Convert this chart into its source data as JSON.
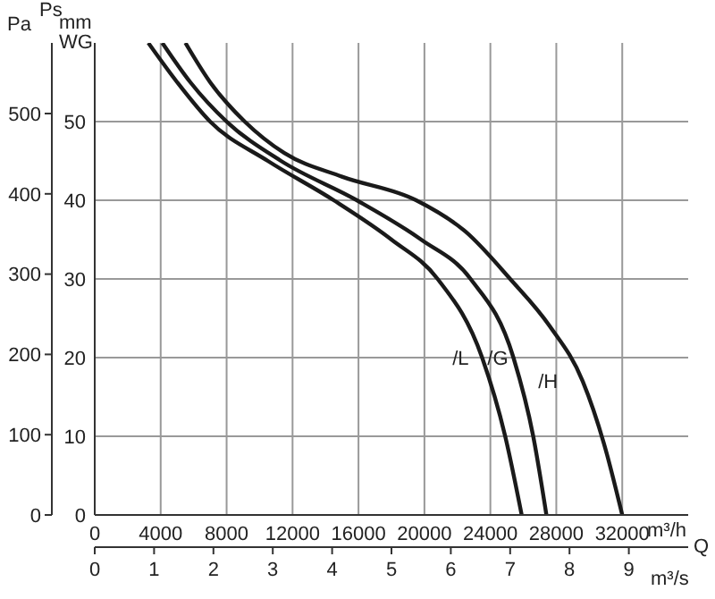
{
  "chart_data": {
    "type": "line",
    "ylabel": "mm WG",
    "y2label": "Pa",
    "xlabel": "m³/h",
    "x2label": "m³/s",
    "annotations": [
      "Ps",
      "Q"
    ],
    "xlim": [
      0,
      36000
    ],
    "xticks": [
      0,
      4000,
      8000,
      12000,
      16000,
      20000,
      24000,
      28000,
      32000
    ],
    "x2lim": [
      0,
      10
    ],
    "x2ticks": [
      0,
      1,
      2,
      3,
      4,
      5,
      6,
      7,
      8,
      9
    ],
    "ylim": [
      0,
      60
    ],
    "yticks": [
      0,
      10,
      20,
      30,
      40,
      50
    ],
    "y2lim": [
      0,
      588
    ],
    "y2ticks": [
      0,
      100,
      200,
      300,
      400,
      500
    ],
    "grid": true,
    "series": [
      {
        "name": "/L",
        "color": "#1a1a1a",
        "x": [
          3250,
          5000,
          7000,
          10500,
          14500,
          18000,
          20800,
          23500,
          24900,
          25900
        ],
        "values": [
          60,
          55,
          50,
          45,
          40,
          35,
          30,
          20,
          10,
          0
        ]
      },
      {
        "name": "/G",
        "color": "#1a1a1a",
        "x": [
          4100,
          5800,
          8000,
          11300,
          15900,
          19800,
          22800,
          25400,
          26600,
          27400
        ],
        "values": [
          60,
          55,
          50,
          45,
          40,
          35,
          30,
          20,
          10,
          0
        ]
      },
      {
        "name": "/H",
        "color": "#1a1a1a",
        "x": [
          5500,
          7000,
          9100,
          11500,
          15000,
          19500,
          22500,
          25200,
          27600,
          29600,
          30900,
          32000
        ],
        "values": [
          60,
          55,
          50,
          46,
          43,
          40,
          36,
          30,
          24,
          17,
          9,
          0
        ]
      }
    ]
  }
}
